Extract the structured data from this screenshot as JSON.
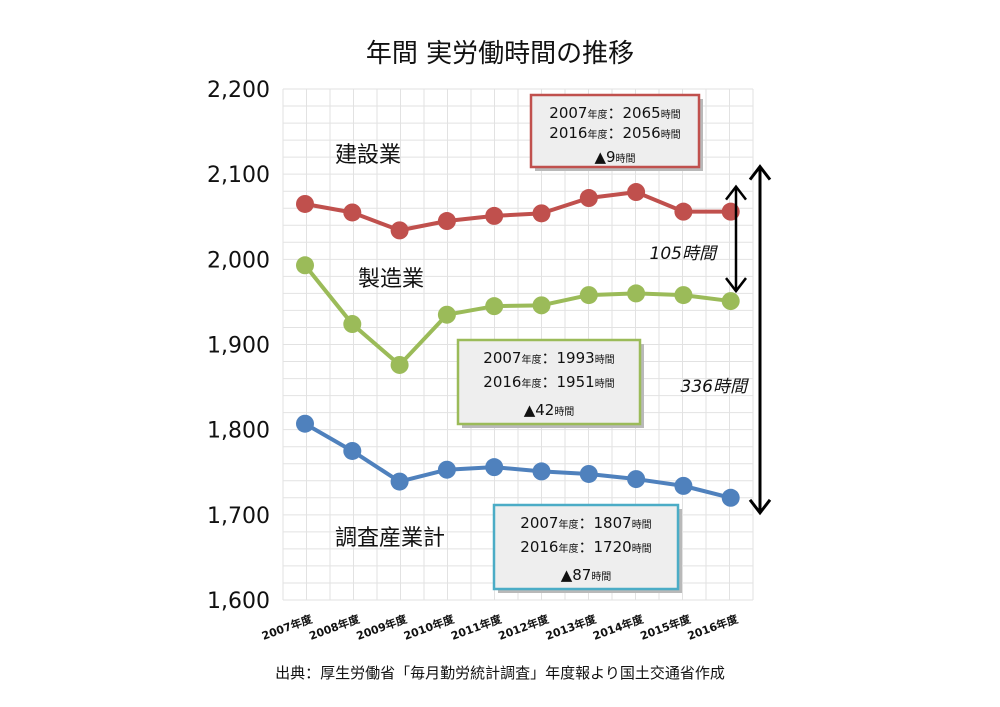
{
  "chart_data": {
    "type": "line",
    "title": "年間 実労働時間の推移",
    "categories": [
      "2007年度",
      "2008年度",
      "2009年度",
      "2010年度",
      "2011年度",
      "2012年度",
      "2013年度",
      "2014年度",
      "2015年度",
      "2016年度"
    ],
    "ylim": [
      1600,
      2200
    ],
    "yticks": [
      "1,600",
      "1,700",
      "1,800",
      "1,900",
      "2,000",
      "2,100",
      "2,200"
    ],
    "ytick_values": [
      1600,
      1700,
      1800,
      1900,
      2000,
      2100,
      2200
    ],
    "grid": true,
    "series": [
      {
        "name": "建設業",
        "color": "#c0504d",
        "values": [
          2065,
          2055,
          2034,
          2045,
          2051,
          2054,
          2072,
          2079,
          2056,
          2056
        ]
      },
      {
        "name": "製造業",
        "color": "#9bbb59",
        "values": [
          1993,
          1924,
          1876,
          1935,
          1945,
          1946,
          1958,
          1960,
          1958,
          1951
        ]
      },
      {
        "name": "調査産業計",
        "color": "#4f81bd",
        "values": [
          1807,
          1775,
          1739,
          1753,
          1756,
          1751,
          1748,
          1742,
          1734,
          1720
        ]
      }
    ],
    "annotations": [
      {
        "series": "建設業",
        "border": "#c0504d",
        "line1_year": "2007",
        "line1_unit": "年度",
        "line1_sep": "：",
        "line1_value": "2065",
        "line1_suffix": "時間",
        "line2_year": "2016",
        "line2_unit": "年度",
        "line2_sep": "：",
        "line2_value": "2056",
        "line2_suffix": "時間",
        "diff_value": "▲9",
        "diff_suffix": "時間"
      },
      {
        "series": "製造業",
        "border": "#9bbb59",
        "line1_year": "2007",
        "line1_unit": "年度",
        "line1_sep": "：",
        "line1_value": "1993",
        "line1_suffix": "時間",
        "line2_year": "2016",
        "line2_unit": "年度",
        "line2_sep": "：",
        "line2_value": "1951",
        "line2_suffix": "時間",
        "diff_value": "▲42",
        "diff_suffix": "時間"
      },
      {
        "series": "調査産業計",
        "border": "#4bacc6",
        "line1_year": "2007",
        "line1_unit": "年度",
        "line1_sep": "：",
        "line1_value": "1807",
        "line1_suffix": "時間",
        "line2_year": "2016",
        "line2_unit": "年度",
        "line2_sep": "：",
        "line2_value": "1720",
        "line2_suffix": "時間",
        "diff_value": "▲87",
        "diff_suffix": "時間"
      }
    ],
    "gaps": [
      {
        "label": "105時間",
        "from_value": 2056,
        "to_value": 1951
      },
      {
        "label": "336時間",
        "from_value": 2056,
        "to_value": 1720
      }
    ],
    "source": "出典：厚生労働省「毎月勤労統計調査」年度報より国土交通省作成"
  }
}
